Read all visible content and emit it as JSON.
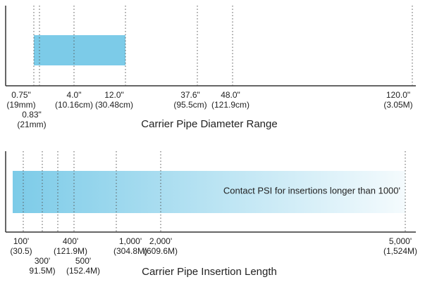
{
  "chart_data": [
    {
      "type": "range",
      "title": "Carrier Pipe Diameter Range",
      "color": "#7ccbe8",
      "xlim": [
        0,
        120
      ],
      "xticks": [
        {
          "value": 0.75,
          "label": "0.75\"",
          "metric": "(19mm)"
        },
        {
          "value": 0.83,
          "label": "0.83\"",
          "metric": "(21mm)"
        },
        {
          "value": 4.0,
          "label": "4.0\"",
          "metric": "(10.16cm)"
        },
        {
          "value": 12.0,
          "label": "12.0\"",
          "metric": "(30.48cm)"
        },
        {
          "value": 37.6,
          "label": "37.6\"",
          "metric": "(95.5cm)"
        },
        {
          "value": 48.0,
          "label": "48.0\"",
          "metric": "(121.9cm)"
        },
        {
          "value": 120.0,
          "label": "120.0\"",
          "metric": "(3.05M)"
        }
      ],
      "range": [
        0.75,
        12.0
      ]
    },
    {
      "type": "range",
      "title": "Carrier Pipe Insertion Length",
      "color": "#7ccbe8",
      "xlim": [
        0,
        5000
      ],
      "xticks": [
        {
          "value": 100,
          "label": "100'",
          "metric": "(30.5)"
        },
        {
          "value": 300,
          "label": "300'",
          "metric": "91.5M)"
        },
        {
          "value": 400,
          "label": "400'",
          "metric": "(121.9M)"
        },
        {
          "value": 500,
          "label": "500'",
          "metric": "(152.4M)"
        },
        {
          "value": 1000,
          "label": "1,000'",
          "metric": "(304.8M)"
        },
        {
          "value": 2000,
          "label": "2,000'",
          "metric": "(609.6M)"
        },
        {
          "value": 5000,
          "label": "5,000'",
          "metric": "(1,524M)"
        }
      ],
      "range": [
        40,
        5000
      ],
      "annotation": "Contact PSI for insertions longer than 1000'"
    }
  ]
}
